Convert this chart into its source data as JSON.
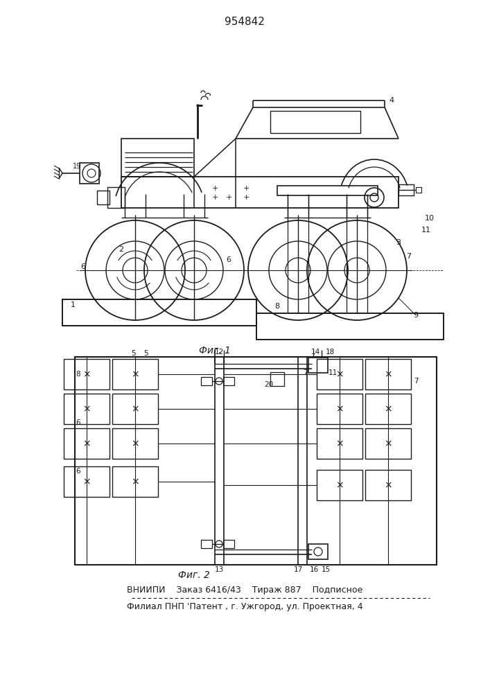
{
  "patent_number": "954842",
  "fig1_caption": "Фиг. 1",
  "fig2_caption": "Фиг. 2",
  "footer_line1": "ВНИИПИ    Заказ 6416/43    Тираж 887    Подписное",
  "footer_line2": "Филиал ПНП 'Патент , г. Ужгород, ул. Проектная, 4",
  "bg_color": "#ffffff",
  "line_color": "#1a1a1a",
  "fig_width": 7.07,
  "fig_height": 10.0
}
